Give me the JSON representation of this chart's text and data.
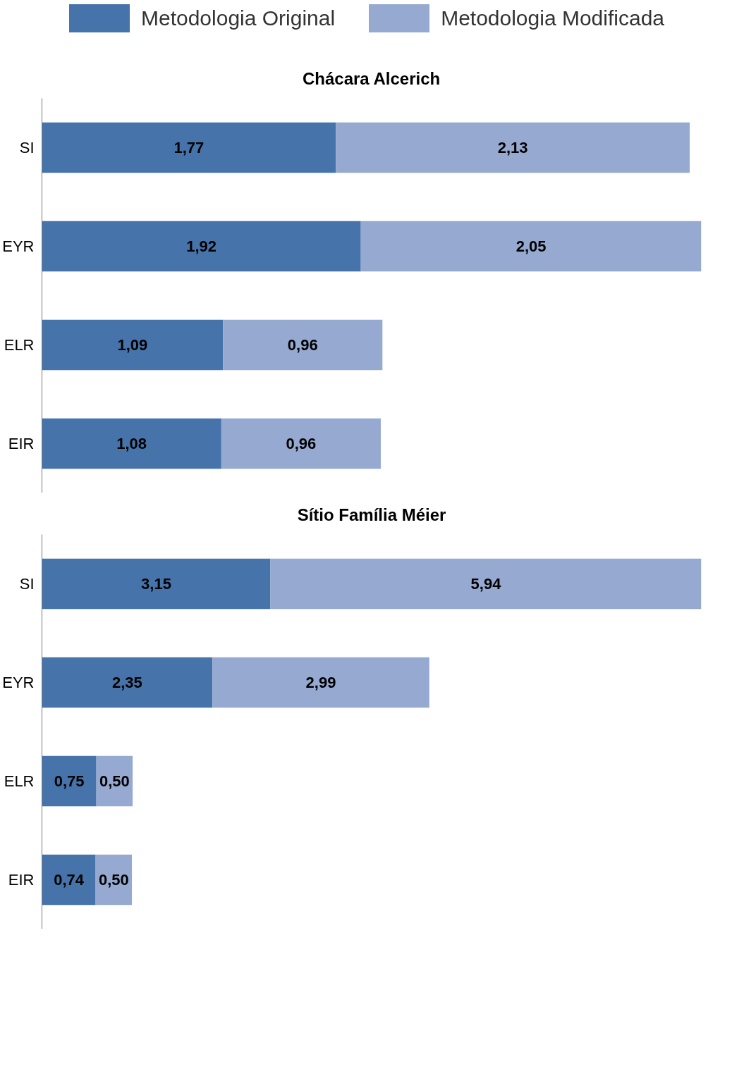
{
  "chart_data": [
    {
      "type": "bar",
      "orientation": "horizontal",
      "stacked": true,
      "title": "Chácara Alcerich",
      "categories": [
        "SI",
        "EYR",
        "ELR",
        "EIR"
      ],
      "series": [
        {
          "name": "Metodologia Original",
          "color": "#4674aa",
          "values": [
            1.77,
            1.92,
            1.09,
            1.08
          ],
          "value_labels": [
            "1,77",
            "1,92",
            "1,09",
            "1,08"
          ]
        },
        {
          "name": "Metodologia Modificada",
          "color": "#95a9d1",
          "values": [
            2.13,
            2.05,
            0.96,
            0.96
          ],
          "value_labels": [
            "2,13",
            "2,05",
            "0,96",
            "0,96"
          ]
        }
      ],
      "data_labels": true,
      "tick_labels": "y",
      "grid": false,
      "legend": "top"
    },
    {
      "type": "bar",
      "orientation": "horizontal",
      "stacked": true,
      "title": "Sítio Família Méier",
      "categories": [
        "SI",
        "EYR",
        "ELR",
        "EIR"
      ],
      "series": [
        {
          "color": "#4674aa",
          "values": [
            3.15,
            2.35,
            0.75,
            0.74
          ],
          "value_labels": [
            "3,15",
            "2,35",
            "0,75",
            "0,74"
          ]
        },
        {
          "color": "#95a9d1",
          "values": [
            5.94,
            2.99,
            0.5,
            0.5
          ],
          "value_labels": [
            "5,94",
            "2,99",
            "0,50",
            "0,50"
          ]
        }
      ],
      "data_labels": true,
      "tick_labels": "y",
      "grid": false
    }
  ]
}
